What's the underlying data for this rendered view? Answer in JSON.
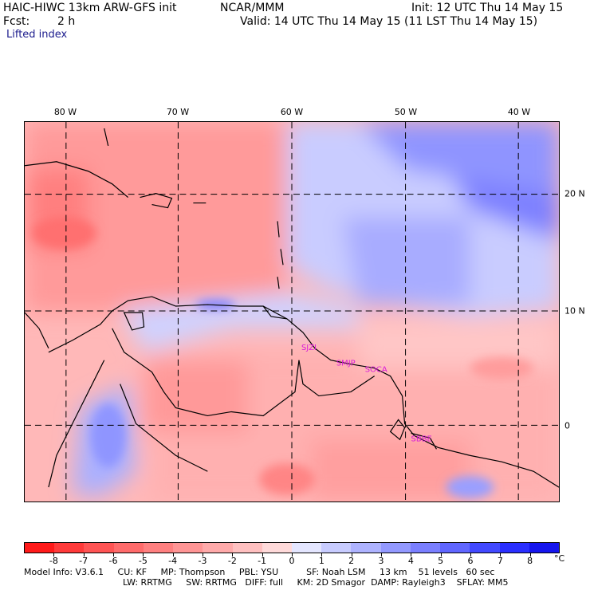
{
  "header": {
    "model": "HAIC-HIWC 13km ARW-GFS init",
    "org": "NCAR/MMM",
    "init": "Init: 12 UTC Thu 14 May 15",
    "fcst_label": "Fcst:",
    "fcst_value": "2 h",
    "valid": "Valid: 14 UTC Thu 14 May 15 (11 LST Thu 14 May 15)",
    "field": "Lifted index"
  },
  "map": {
    "lon_labels": [
      "80 W",
      "70 W",
      "60 W",
      "50 W",
      "40 W"
    ],
    "lat_labels": [
      "20 N",
      "10 N",
      "0"
    ],
    "cities": [
      "SJZI",
      "SMJP",
      "SOCA",
      "SBBE"
    ],
    "field_bands": [
      {
        "region": "western caribbean and colombia",
        "sign": "negative",
        "range": [
          -5,
          -2
        ]
      },
      {
        "region": "central atlantic north of 12N",
        "sign": "positive",
        "range": [
          2,
          6
        ]
      },
      {
        "region": "northeast brazil and equatorial atlantic",
        "sign": "negative",
        "range": [
          -3,
          -1
        ]
      }
    ]
  },
  "colorbar": {
    "labels": [
      "-8",
      "-7",
      "-6",
      "-5",
      "-4",
      "-3",
      "-2",
      "-1",
      "0",
      "1",
      "2",
      "3",
      "4",
      "5",
      "6",
      "7",
      "8"
    ],
    "unit": "°C",
    "colors": [
      "#ff1a1a",
      "#ff3a3a",
      "#ff5454",
      "#ff6b6b",
      "#ff8080",
      "#ff9595",
      "#ffaaaa",
      "#ffc0c0",
      "#ffdada",
      "#e4e6ff",
      "#c8ccff",
      "#aeb3ff",
      "#9399ff",
      "#7a7fff",
      "#6066ff",
      "#4249ff",
      "#2a2fff",
      "#1515ee"
    ]
  },
  "footer": {
    "line1": "Model Info: V3.6.1     CU: KF     MP: Thompson     PBL: YSU          SF: Noah LSM     13 km    51 levels   60 sec",
    "line2": "LW: RRTMG     SW: RRTMG   DIFF: full     KM: 2D Smagor  DAMP: Rayleigh3    SFLAY: MM5"
  }
}
